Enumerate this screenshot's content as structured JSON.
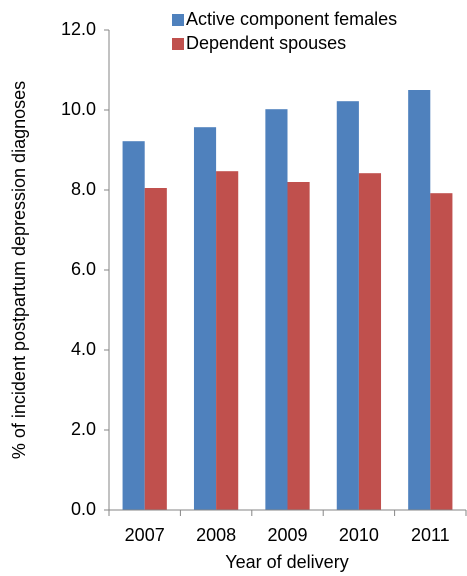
{
  "chart_data": {
    "type": "bar",
    "x_label": "Year of delivery",
    "y_label": "% of incident postpartum depression diagnoses",
    "categories": [
      "2007",
      "2008",
      "2009",
      "2010",
      "2011"
    ],
    "series": [
      {
        "name": "Active component females",
        "color": "#4f81bd",
        "values": [
          9.22,
          9.57,
          10.02,
          10.22,
          10.5
        ]
      },
      {
        "name": "Dependent spouses",
        "color": "#c0504d",
        "values": [
          8.05,
          8.47,
          8.2,
          8.42,
          7.92
        ]
      }
    ],
    "ylim": [
      0,
      12
    ],
    "yticks": [
      {
        "value": 0,
        "label": "0.0"
      },
      {
        "value": 2,
        "label": "2.0"
      },
      {
        "value": 4,
        "label": "4.0"
      },
      {
        "value": 6,
        "label": "6.0"
      },
      {
        "value": 8,
        "label": "8.0"
      },
      {
        "value": 10,
        "label": "10.0"
      },
      {
        "value": 12,
        "label": "12.0"
      }
    ],
    "grid": false,
    "legend": "top"
  }
}
